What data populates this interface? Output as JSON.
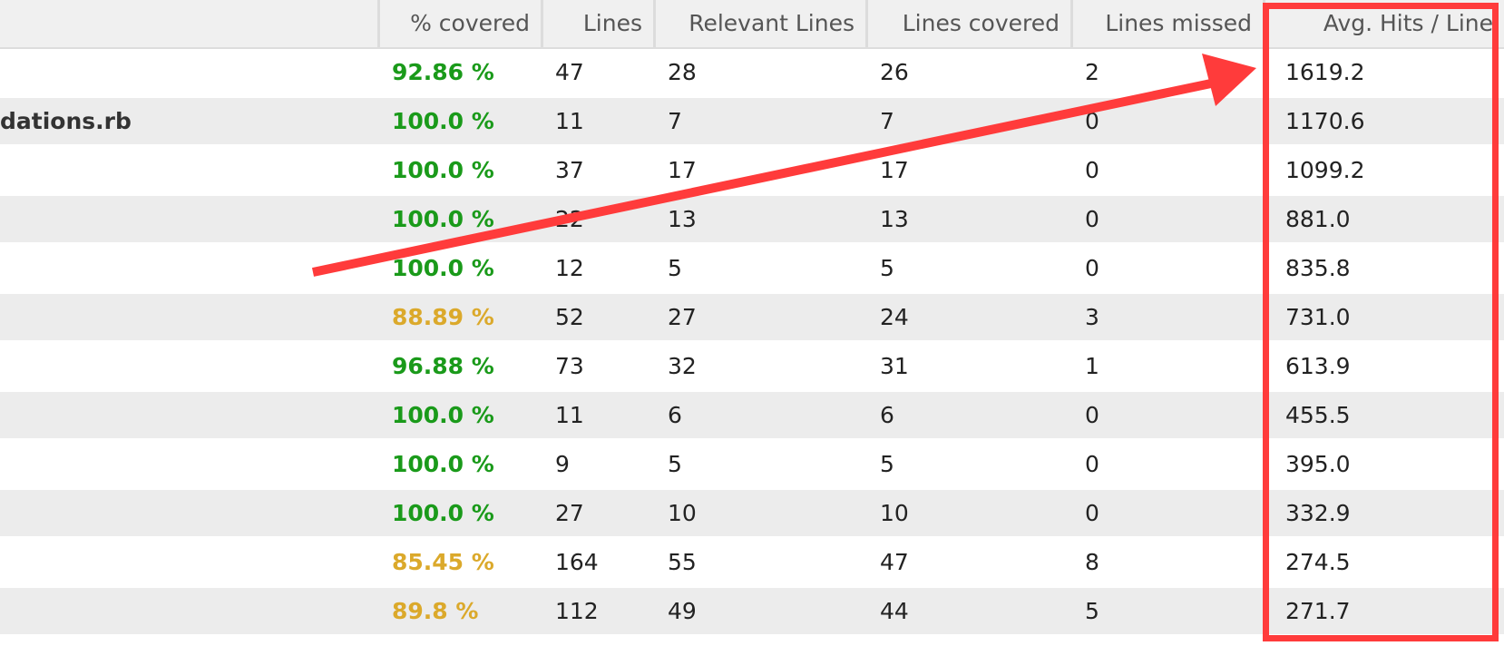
{
  "table": {
    "columns": {
      "covered": "% covered",
      "lines": "Lines",
      "relevant": "Relevant Lines",
      "lines_covered": "Lines covered",
      "lines_missed": "Lines missed",
      "avg_hits": "Avg. Hits / Line"
    },
    "rows": [
      {
        "file": "",
        "covered": "92.86 %",
        "status": "green",
        "lines": "47",
        "relevant": "28",
        "lines_covered": "26",
        "lines_missed": "2",
        "avg_hits": "1619.2"
      },
      {
        "file": "dations.rb",
        "covered": "100.0 %",
        "status": "green",
        "lines": "11",
        "relevant": "7",
        "lines_covered": "7",
        "lines_missed": "0",
        "avg_hits": "1170.6"
      },
      {
        "file": "",
        "covered": "100.0 %",
        "status": "green",
        "lines": "37",
        "relevant": "17",
        "lines_covered": "17",
        "lines_missed": "0",
        "avg_hits": "1099.2"
      },
      {
        "file": "",
        "covered": "100.0 %",
        "status": "green",
        "lines": "22",
        "relevant": "13",
        "lines_covered": "13",
        "lines_missed": "0",
        "avg_hits": "881.0"
      },
      {
        "file": "",
        "covered": "100.0 %",
        "status": "green",
        "lines": "12",
        "relevant": "5",
        "lines_covered": "5",
        "lines_missed": "0",
        "avg_hits": "835.8"
      },
      {
        "file": "",
        "covered": "88.89 %",
        "status": "yellow",
        "lines": "52",
        "relevant": "27",
        "lines_covered": "24",
        "lines_missed": "3",
        "avg_hits": "731.0"
      },
      {
        "file": "",
        "covered": "96.88 %",
        "status": "green",
        "lines": "73",
        "relevant": "32",
        "lines_covered": "31",
        "lines_missed": "1",
        "avg_hits": "613.9"
      },
      {
        "file": "",
        "covered": "100.0 %",
        "status": "green",
        "lines": "11",
        "relevant": "6",
        "lines_covered": "6",
        "lines_missed": "0",
        "avg_hits": "455.5"
      },
      {
        "file": "",
        "covered": "100.0 %",
        "status": "green",
        "lines": "9",
        "relevant": "5",
        "lines_covered": "5",
        "lines_missed": "0",
        "avg_hits": "395.0"
      },
      {
        "file": "",
        "covered": "100.0 %",
        "status": "green",
        "lines": "27",
        "relevant": "10",
        "lines_covered": "10",
        "lines_missed": "0",
        "avg_hits": "332.9"
      },
      {
        "file": "",
        "covered": "85.45 %",
        "status": "yellow",
        "lines": "164",
        "relevant": "55",
        "lines_covered": "47",
        "lines_missed": "8",
        "avg_hits": "274.5"
      },
      {
        "file": "",
        "covered": "89.8 %",
        "status": "yellow",
        "lines": "112",
        "relevant": "49",
        "lines_covered": "44",
        "lines_missed": "5",
        "avg_hits": "271.7"
      }
    ]
  },
  "annotation": {
    "color": "#ff3b3b",
    "shapes": [
      "arrow-icon",
      "highlight-box"
    ]
  }
}
